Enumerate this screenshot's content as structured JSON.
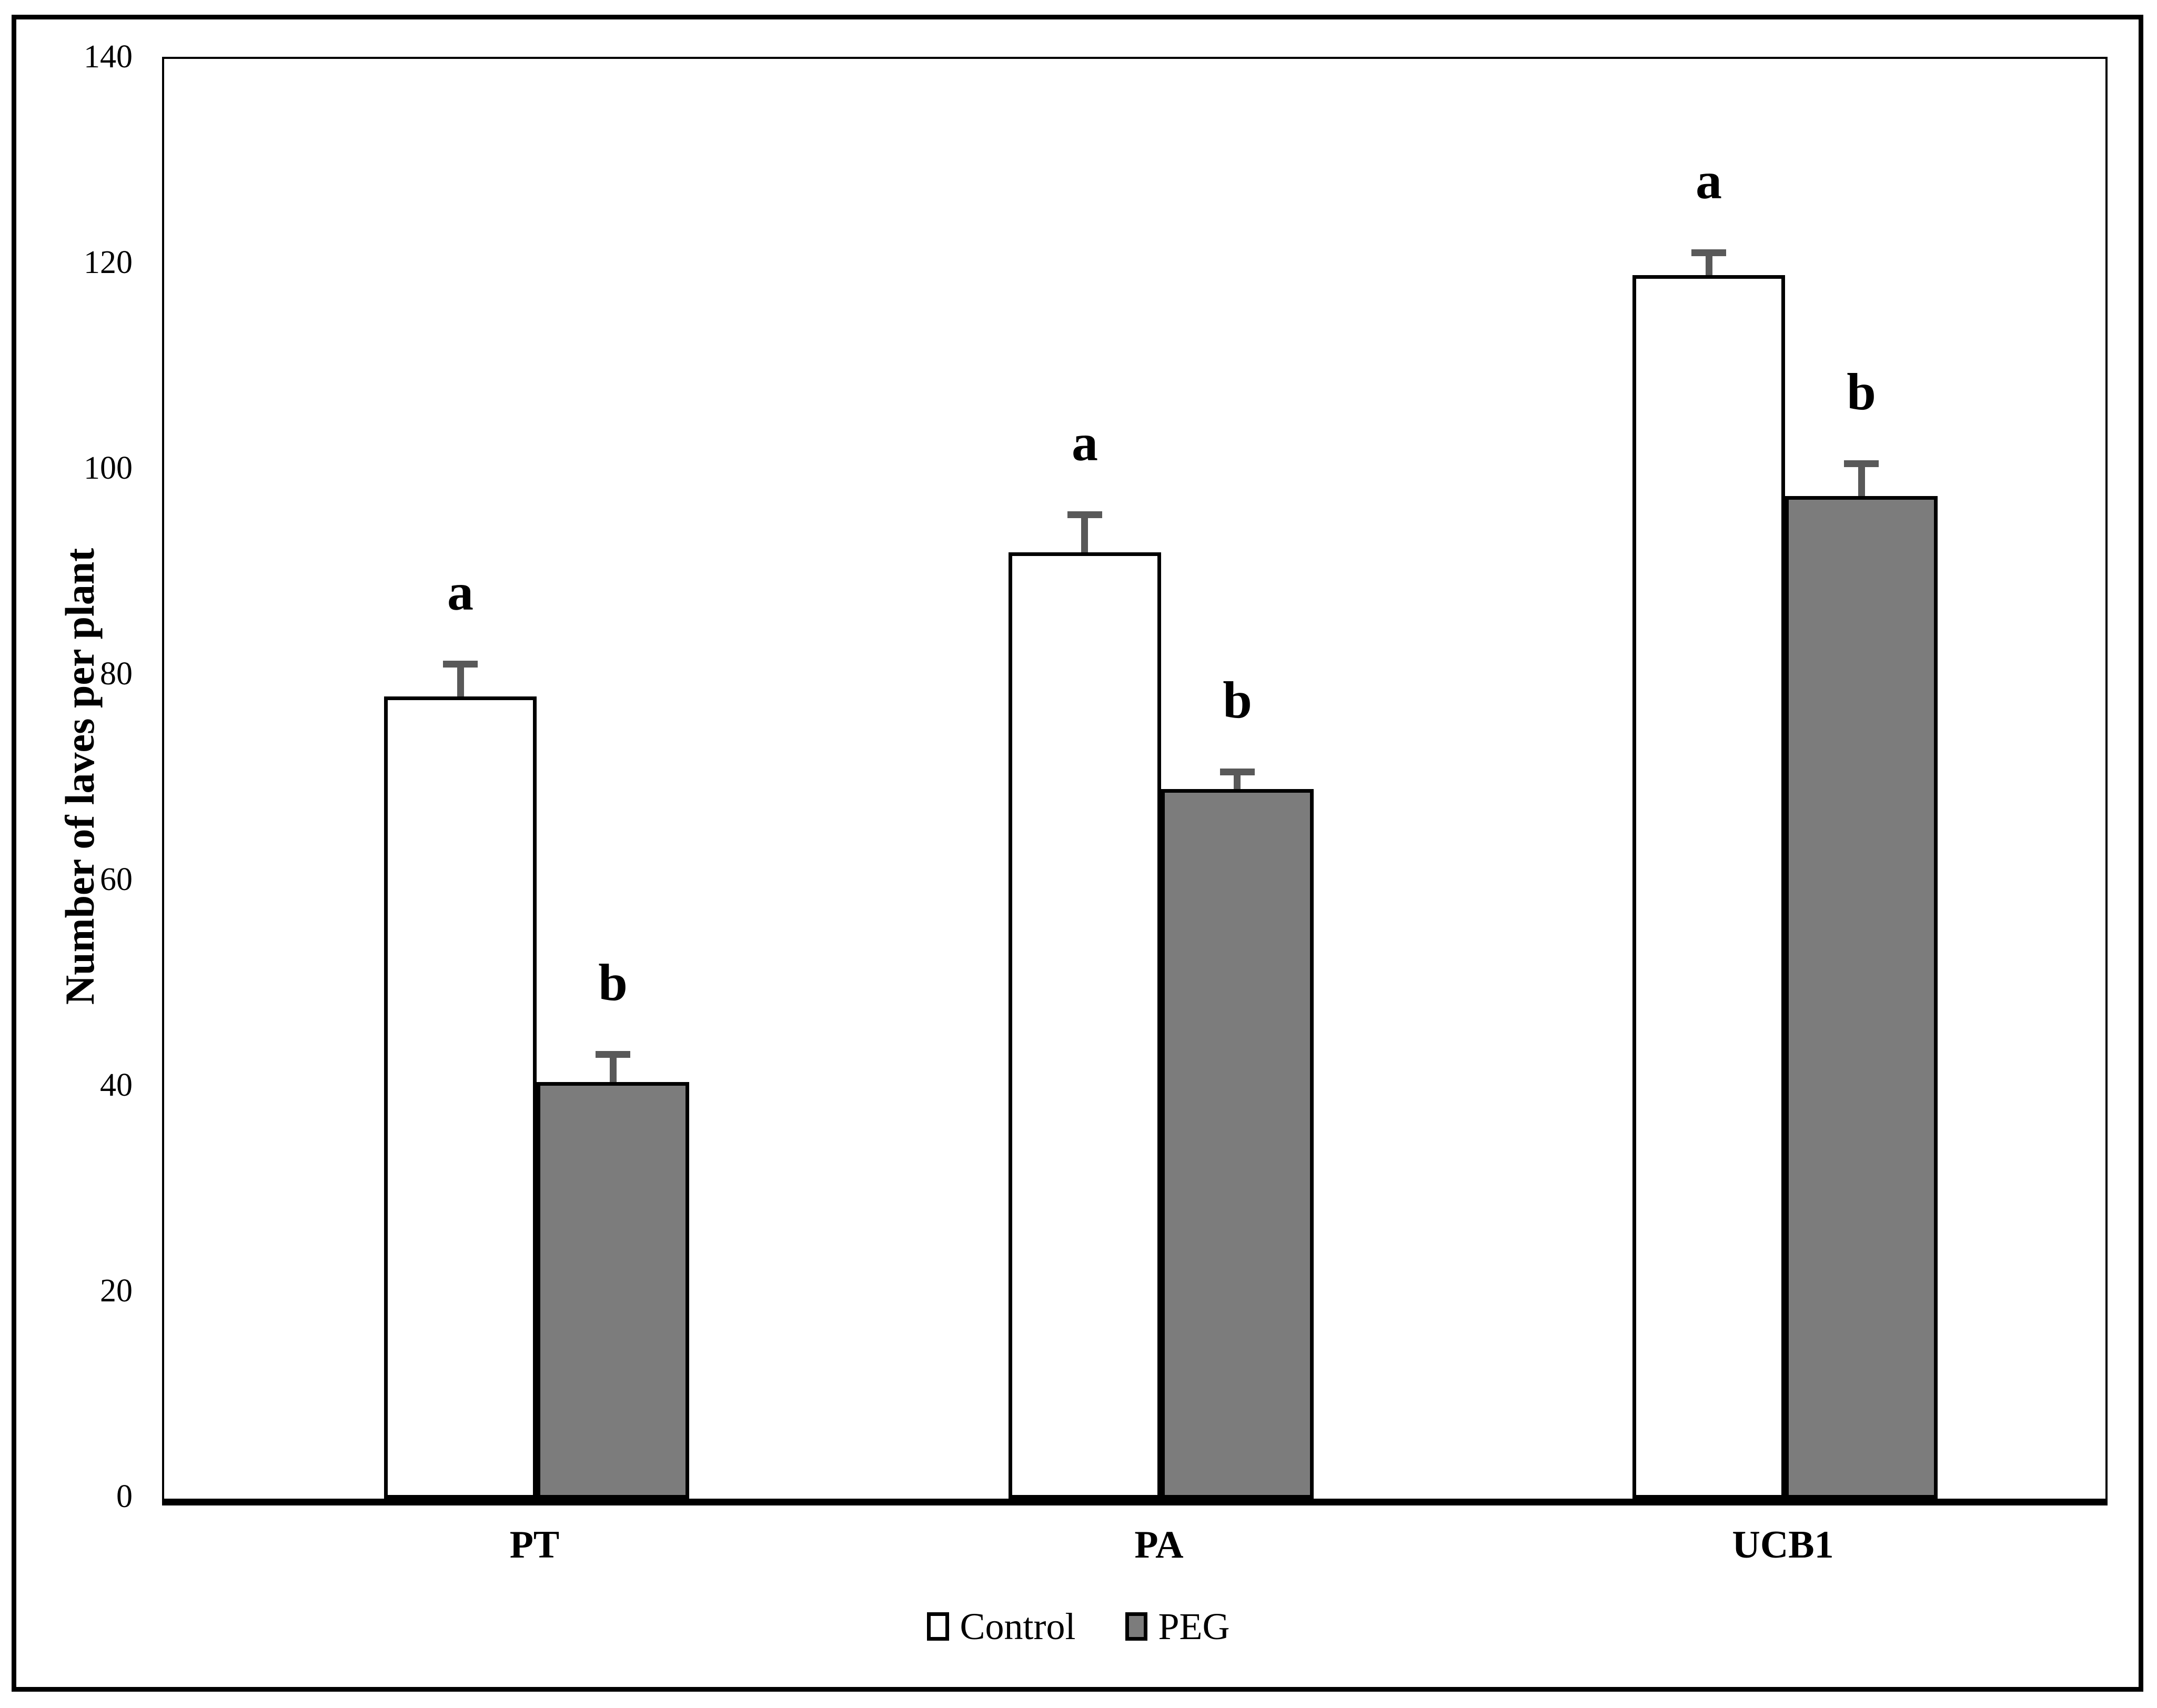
{
  "figure": {
    "background": "#ffffff",
    "outer_border_color": "#000000"
  },
  "chart_data": {
    "type": "bar",
    "title": "",
    "categories": [
      "PT",
      "PA",
      "UCB1"
    ],
    "series": [
      {
        "name": "Control",
        "values": [
          78,
          92,
          119
        ],
        "errors": [
          3.5,
          4,
          2.5
        ],
        "fill": "#FFFFFF",
        "border": "#000000",
        "sig_letters": [
          "a",
          "a",
          "a"
        ]
      },
      {
        "name": "PEG",
        "values": [
          40.5,
          69,
          97.5
        ],
        "errors": [
          3,
          2,
          3.5
        ],
        "fill": "#7C7C7C",
        "border": "#000000",
        "sig_letters": [
          "b",
          "b",
          "b"
        ]
      }
    ],
    "xlabel": "",
    "ylabel": "Number of laves per plant",
    "ylim": [
      0,
      140
    ],
    "yticks": [
      0,
      20,
      40,
      60,
      80,
      100,
      120,
      140
    ],
    "grid": false,
    "legend_position": "bottom",
    "error_bar_color": "#595959",
    "bar_border_color": "#000000"
  }
}
